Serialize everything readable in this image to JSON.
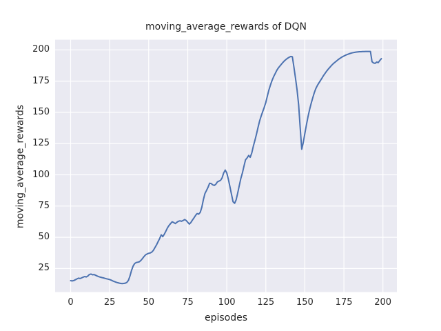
{
  "figure": {
    "title": "moving_average_rewards of DQN",
    "xlabel": "episodes",
    "ylabel": "moving_average_rewards"
  },
  "chart_data": {
    "type": "line",
    "title": "moving_average_rewards of DQN",
    "xlabel": "episodes",
    "ylabel": "moving_average_rewards",
    "x_ticks": [
      0,
      25,
      50,
      75,
      100,
      125,
      150,
      175,
      200
    ],
    "y_ticks": [
      25,
      50,
      75,
      100,
      125,
      150,
      175,
      200
    ],
    "xlim": [
      -9.95,
      208.95
    ],
    "ylim": [
      6.2,
      208.1
    ],
    "grid": true,
    "legend_position": "none",
    "colors": {
      "line": "#4c72b0",
      "axes_background": "#eaeaf2",
      "grid": "#ffffff",
      "figure_background": "#ffffff",
      "text": "#262626"
    },
    "series": [
      {
        "name": "moving_average_rewards",
        "x_start": 0,
        "x_step": 1,
        "values": [
          15.3,
          15.1,
          15.4,
          16.0,
          16.7,
          17.3,
          17.0,
          17.5,
          18.1,
          18.6,
          18.3,
          19.0,
          20.2,
          20.6,
          20.0,
          20.2,
          19.6,
          19.0,
          18.5,
          18.1,
          17.8,
          17.5,
          17.1,
          16.8,
          16.5,
          16.2,
          15.7,
          15.1,
          14.6,
          14.1,
          13.7,
          13.4,
          13.1,
          13.0,
          13.1,
          13.3,
          13.9,
          15.6,
          19.0,
          23.5,
          27.0,
          29.0,
          29.8,
          30.1,
          30.4,
          31.5,
          33.0,
          34.6,
          36.0,
          36.7,
          37.2,
          37.5,
          38.2,
          39.6,
          41.8,
          44.0,
          46.5,
          49.0,
          52.0,
          50.5,
          52.5,
          55.0,
          57.5,
          59.5,
          61.0,
          62.4,
          61.8,
          61.0,
          62.0,
          62.8,
          63.2,
          62.8,
          63.4,
          64.2,
          63.5,
          62.0,
          60.6,
          61.8,
          63.8,
          65.5,
          67.5,
          69.0,
          68.5,
          70.0,
          74.0,
          80.0,
          85.0,
          87.5,
          90.0,
          93.3,
          93.0,
          92.0,
          91.5,
          92.5,
          94.3,
          95.0,
          95.6,
          97.5,
          101.5,
          103.8,
          101.5,
          96.5,
          90.5,
          84.5,
          78.5,
          77.2,
          80.0,
          85.5,
          91.5,
          97.0,
          101.5,
          107.0,
          112.0,
          113.5,
          115.5,
          114.0,
          117.5,
          123.0,
          127.5,
          132.5,
          138.0,
          143.0,
          147.0,
          150.5,
          154.0,
          158.0,
          163.0,
          168.0,
          172.0,
          175.5,
          178.5,
          181.0,
          183.5,
          185.5,
          187.0,
          188.5,
          190.0,
          191.3,
          192.4,
          193.3,
          194.1,
          194.7,
          194.4,
          186.0,
          177.5,
          168.0,
          156.0,
          138.0,
          120.5,
          126.0,
          133.0,
          140.0,
          146.5,
          152.0,
          157.0,
          161.5,
          165.5,
          169.0,
          171.5,
          173.5,
          175.5,
          177.5,
          179.5,
          181.3,
          183.0,
          184.6,
          186.0,
          187.4,
          188.7,
          189.8,
          190.8,
          191.8,
          192.8,
          193.6,
          194.4,
          195.1,
          195.7,
          196.2,
          196.7,
          197.1,
          197.5,
          197.8,
          198.0,
          198.2,
          198.4,
          198.5,
          198.5,
          198.6,
          198.6,
          198.7,
          198.7,
          198.7,
          198.7,
          190.5,
          189.5,
          189.2,
          190.2,
          189.8,
          191.5,
          193.0
        ]
      }
    ]
  }
}
